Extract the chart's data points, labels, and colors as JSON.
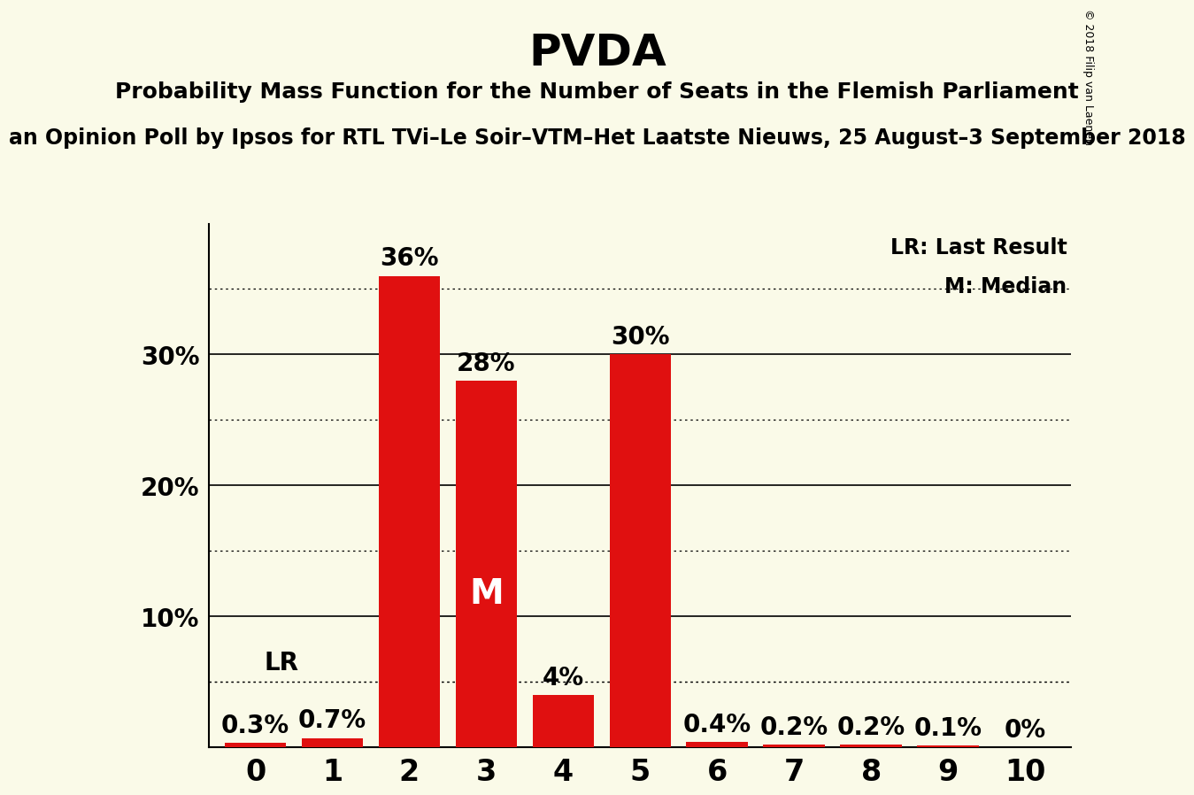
{
  "title": "PVDA",
  "subtitle": "Probability Mass Function for the Number of Seats in the Flemish Parliament",
  "subsubtitle": "an Opinion Poll by Ipsos for RTL TVi–Le Soir–VTM–Het Laatste Nieuws, 25 August–3 September 2018",
  "copyright": "© 2018 Filip van Laenen",
  "categories": [
    0,
    1,
    2,
    3,
    4,
    5,
    6,
    7,
    8,
    9,
    10
  ],
  "values": [
    0.3,
    0.7,
    36.0,
    28.0,
    4.0,
    30.0,
    0.4,
    0.2,
    0.2,
    0.1,
    0.0
  ],
  "bar_color": "#e01010",
  "background_color": "#fafae8",
  "lr_value": 5.0,
  "lr_label": "LR",
  "median_bar": 3,
  "median_label": "M",
  "legend_lr": "LR: Last Result",
  "legend_m": "M: Median",
  "yticks": [
    10,
    20,
    30
  ],
  "ylim": [
    0,
    40
  ],
  "dotted_lines": [
    5,
    15,
    25,
    35
  ],
  "solid_lines": [
    10,
    20,
    30
  ],
  "title_fontsize": 36,
  "subtitle_fontsize": 18,
  "subsubtitle_fontsize": 17,
  "bar_label_fontsize": 20,
  "ytick_fontsize": 20,
  "xtick_fontsize": 24,
  "legend_fontsize": 17,
  "lr_fontsize": 20,
  "median_fontsize": 28,
  "copyright_fontsize": 9
}
